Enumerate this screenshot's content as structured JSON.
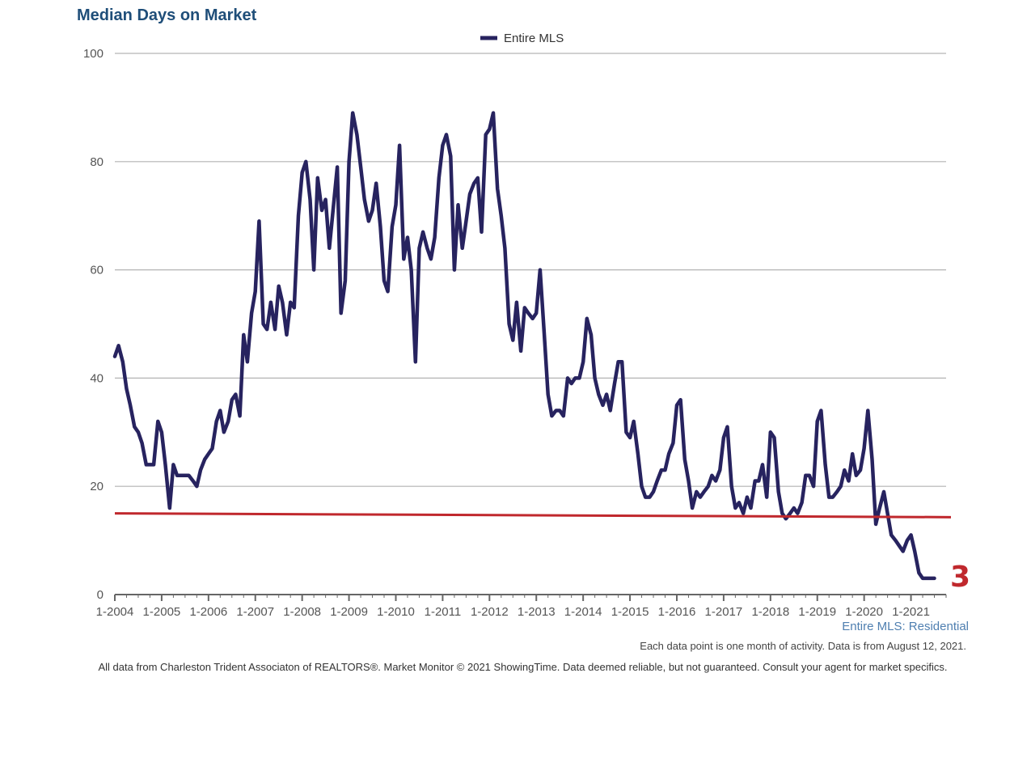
{
  "chart_data": {
    "type": "line",
    "title": "Median Days on Market",
    "subtitle": "Entire MLS: Residential",
    "note": "Each data point is one month of activity. Data is from August 12, 2021.",
    "footer": "All data from Charleston Trident Associaton of REALTORS®. Market Monitor © 2021 ShowingTime. Data deemed reliable, but not guaranteed. Consult your agent for market specifics.",
    "ylim": [
      0,
      100
    ],
    "yticks": [
      0,
      20,
      40,
      60,
      80,
      100
    ],
    "xlim": [
      2004,
      2021.75
    ],
    "xticks": [
      {
        "label": "1-2004",
        "value": 2004
      },
      {
        "label": "1-2005",
        "value": 2005
      },
      {
        "label": "1-2006",
        "value": 2006
      },
      {
        "label": "1-2007",
        "value": 2007
      },
      {
        "label": "1-2008",
        "value": 2008
      },
      {
        "label": "1-2009",
        "value": 2009
      },
      {
        "label": "1-2010",
        "value": 2010
      },
      {
        "label": "1-2011",
        "value": 2011
      },
      {
        "label": "1-2012",
        "value": 2012
      },
      {
        "label": "1-2013",
        "value": 2013
      },
      {
        "label": "1-2014",
        "value": 2014
      },
      {
        "label": "1-2015",
        "value": 2015
      },
      {
        "label": "1-2016",
        "value": 2016
      },
      {
        "label": "1-2017",
        "value": 2017
      },
      {
        "label": "1-2018",
        "value": 2018
      },
      {
        "label": "1-2019",
        "value": 2019
      },
      {
        "label": "1-2020",
        "value": 2020
      },
      {
        "label": "1-2021",
        "value": 2021
      }
    ],
    "legend": {
      "label": "Entire MLS",
      "position": "top-center"
    },
    "series": [
      {
        "name": "Entire MLS",
        "color": "#27235f",
        "points": [
          [
            2004.0,
            44
          ],
          [
            2004.08,
            46
          ],
          [
            2004.17,
            43
          ],
          [
            2004.25,
            38
          ],
          [
            2004.33,
            35
          ],
          [
            2004.42,
            31
          ],
          [
            2004.5,
            30
          ],
          [
            2004.58,
            28
          ],
          [
            2004.67,
            24
          ],
          [
            2004.75,
            24
          ],
          [
            2004.83,
            24
          ],
          [
            2004.92,
            32
          ],
          [
            2005.0,
            30
          ],
          [
            2005.08,
            24
          ],
          [
            2005.17,
            16
          ],
          [
            2005.25,
            24
          ],
          [
            2005.33,
            22
          ],
          [
            2005.42,
            22
          ],
          [
            2005.5,
            22
          ],
          [
            2005.58,
            22
          ],
          [
            2005.67,
            21
          ],
          [
            2005.75,
            20
          ],
          [
            2005.83,
            23
          ],
          [
            2005.92,
            25
          ],
          [
            2006.0,
            26
          ],
          [
            2006.08,
            27
          ],
          [
            2006.17,
            32
          ],
          [
            2006.25,
            34
          ],
          [
            2006.33,
            30
          ],
          [
            2006.42,
            32
          ],
          [
            2006.5,
            36
          ],
          [
            2006.58,
            37
          ],
          [
            2006.67,
            33
          ],
          [
            2006.75,
            48
          ],
          [
            2006.83,
            43
          ],
          [
            2006.92,
            52
          ],
          [
            2007.0,
            56
          ],
          [
            2007.08,
            69
          ],
          [
            2007.17,
            50
          ],
          [
            2007.25,
            49
          ],
          [
            2007.33,
            54
          ],
          [
            2007.42,
            49
          ],
          [
            2007.5,
            57
          ],
          [
            2007.58,
            54
          ],
          [
            2007.67,
            48
          ],
          [
            2007.75,
            54
          ],
          [
            2007.83,
            53
          ],
          [
            2007.92,
            70
          ],
          [
            2008.0,
            78
          ],
          [
            2008.08,
            80
          ],
          [
            2008.17,
            73
          ],
          [
            2008.25,
            60
          ],
          [
            2008.33,
            77
          ],
          [
            2008.42,
            71
          ],
          [
            2008.5,
            73
          ],
          [
            2008.58,
            64
          ],
          [
            2008.67,
            72
          ],
          [
            2008.75,
            79
          ],
          [
            2008.83,
            52
          ],
          [
            2008.92,
            58
          ],
          [
            2009.0,
            80
          ],
          [
            2009.08,
            89
          ],
          [
            2009.17,
            85
          ],
          [
            2009.25,
            79
          ],
          [
            2009.33,
            73
          ],
          [
            2009.42,
            69
          ],
          [
            2009.5,
            71
          ],
          [
            2009.58,
            76
          ],
          [
            2009.67,
            68
          ],
          [
            2009.75,
            58
          ],
          [
            2009.83,
            56
          ],
          [
            2009.92,
            68
          ],
          [
            2010.0,
            72
          ],
          [
            2010.08,
            83
          ],
          [
            2010.17,
            62
          ],
          [
            2010.25,
            66
          ],
          [
            2010.33,
            60
          ],
          [
            2010.42,
            43
          ],
          [
            2010.5,
            64
          ],
          [
            2010.58,
            67
          ],
          [
            2010.67,
            64
          ],
          [
            2010.75,
            62
          ],
          [
            2010.83,
            66
          ],
          [
            2010.92,
            77
          ],
          [
            2011.0,
            83
          ],
          [
            2011.08,
            85
          ],
          [
            2011.17,
            81
          ],
          [
            2011.25,
            60
          ],
          [
            2011.33,
            72
          ],
          [
            2011.42,
            64
          ],
          [
            2011.5,
            69
          ],
          [
            2011.58,
            74
          ],
          [
            2011.67,
            76
          ],
          [
            2011.75,
            77
          ],
          [
            2011.83,
            67
          ],
          [
            2011.92,
            85
          ],
          [
            2012.0,
            86
          ],
          [
            2012.08,
            89
          ],
          [
            2012.17,
            75
          ],
          [
            2012.25,
            70
          ],
          [
            2012.33,
            64
          ],
          [
            2012.42,
            50
          ],
          [
            2012.5,
            47
          ],
          [
            2012.58,
            54
          ],
          [
            2012.67,
            45
          ],
          [
            2012.75,
            53
          ],
          [
            2012.83,
            52
          ],
          [
            2012.92,
            51
          ],
          [
            2013.0,
            52
          ],
          [
            2013.08,
            60
          ],
          [
            2013.17,
            48
          ],
          [
            2013.25,
            37
          ],
          [
            2013.33,
            33
          ],
          [
            2013.42,
            34
          ],
          [
            2013.5,
            34
          ],
          [
            2013.58,
            33
          ],
          [
            2013.67,
            40
          ],
          [
            2013.75,
            39
          ],
          [
            2013.83,
            40
          ],
          [
            2013.92,
            40
          ],
          [
            2014.0,
            43
          ],
          [
            2014.08,
            51
          ],
          [
            2014.17,
            48
          ],
          [
            2014.25,
            40
          ],
          [
            2014.33,
            37
          ],
          [
            2014.42,
            35
          ],
          [
            2014.5,
            37
          ],
          [
            2014.58,
            34
          ],
          [
            2014.67,
            39
          ],
          [
            2014.75,
            43
          ],
          [
            2014.83,
            43
          ],
          [
            2014.92,
            30
          ],
          [
            2015.0,
            29
          ],
          [
            2015.08,
            32
          ],
          [
            2015.17,
            26
          ],
          [
            2015.25,
            20
          ],
          [
            2015.33,
            18
          ],
          [
            2015.42,
            18
          ],
          [
            2015.5,
            19
          ],
          [
            2015.58,
            21
          ],
          [
            2015.67,
            23
          ],
          [
            2015.75,
            23
          ],
          [
            2015.83,
            26
          ],
          [
            2015.92,
            28
          ],
          [
            2016.0,
            35
          ],
          [
            2016.08,
            36
          ],
          [
            2016.17,
            25
          ],
          [
            2016.25,
            21
          ],
          [
            2016.33,
            16
          ],
          [
            2016.42,
            19
          ],
          [
            2016.5,
            18
          ],
          [
            2016.58,
            19
          ],
          [
            2016.67,
            20
          ],
          [
            2016.75,
            22
          ],
          [
            2016.83,
            21
          ],
          [
            2016.92,
            23
          ],
          [
            2017.0,
            29
          ],
          [
            2017.08,
            31
          ],
          [
            2017.17,
            20
          ],
          [
            2017.25,
            16
          ],
          [
            2017.33,
            17
          ],
          [
            2017.42,
            15
          ],
          [
            2017.5,
            18
          ],
          [
            2017.58,
            16
          ],
          [
            2017.67,
            21
          ],
          [
            2017.75,
            21
          ],
          [
            2017.83,
            24
          ],
          [
            2017.92,
            18
          ],
          [
            2018.0,
            30
          ],
          [
            2018.08,
            29
          ],
          [
            2018.17,
            19
          ],
          [
            2018.25,
            15
          ],
          [
            2018.33,
            14
          ],
          [
            2018.42,
            15
          ],
          [
            2018.5,
            16
          ],
          [
            2018.58,
            15
          ],
          [
            2018.67,
            17
          ],
          [
            2018.75,
            22
          ],
          [
            2018.83,
            22
          ],
          [
            2018.92,
            20
          ],
          [
            2019.0,
            32
          ],
          [
            2019.08,
            34
          ],
          [
            2019.17,
            24
          ],
          [
            2019.25,
            18
          ],
          [
            2019.33,
            18
          ],
          [
            2019.42,
            19
          ],
          [
            2019.5,
            20
          ],
          [
            2019.58,
            23
          ],
          [
            2019.67,
            21
          ],
          [
            2019.75,
            26
          ],
          [
            2019.83,
            22
          ],
          [
            2019.92,
            23
          ],
          [
            2020.0,
            27
          ],
          [
            2020.08,
            34
          ],
          [
            2020.17,
            25
          ],
          [
            2020.25,
            13
          ],
          [
            2020.33,
            16
          ],
          [
            2020.42,
            19
          ],
          [
            2020.5,
            15
          ],
          [
            2020.58,
            11
          ],
          [
            2020.67,
            10
          ],
          [
            2020.75,
            9
          ],
          [
            2020.83,
            8
          ],
          [
            2020.92,
            10
          ],
          [
            2021.0,
            11
          ],
          [
            2021.08,
            8
          ],
          [
            2021.17,
            4
          ],
          [
            2021.25,
            3
          ],
          [
            2021.33,
            3
          ],
          [
            2021.42,
            3
          ],
          [
            2021.5,
            3
          ]
        ]
      }
    ],
    "trend_line": {
      "color": "#c0282d",
      "start": [
        2004.0,
        15.0
      ],
      "end": [
        2021.6,
        14.3
      ]
    },
    "end_label": {
      "text": "3",
      "value": 3,
      "color": "#c0282d"
    },
    "colors": {
      "title": "#1f4e79",
      "subtitle": "#4f7fb0",
      "grid": "#b3b3b3",
      "axis": "#666666",
      "series": "#27235f",
      "trend": "#c0282d"
    }
  }
}
